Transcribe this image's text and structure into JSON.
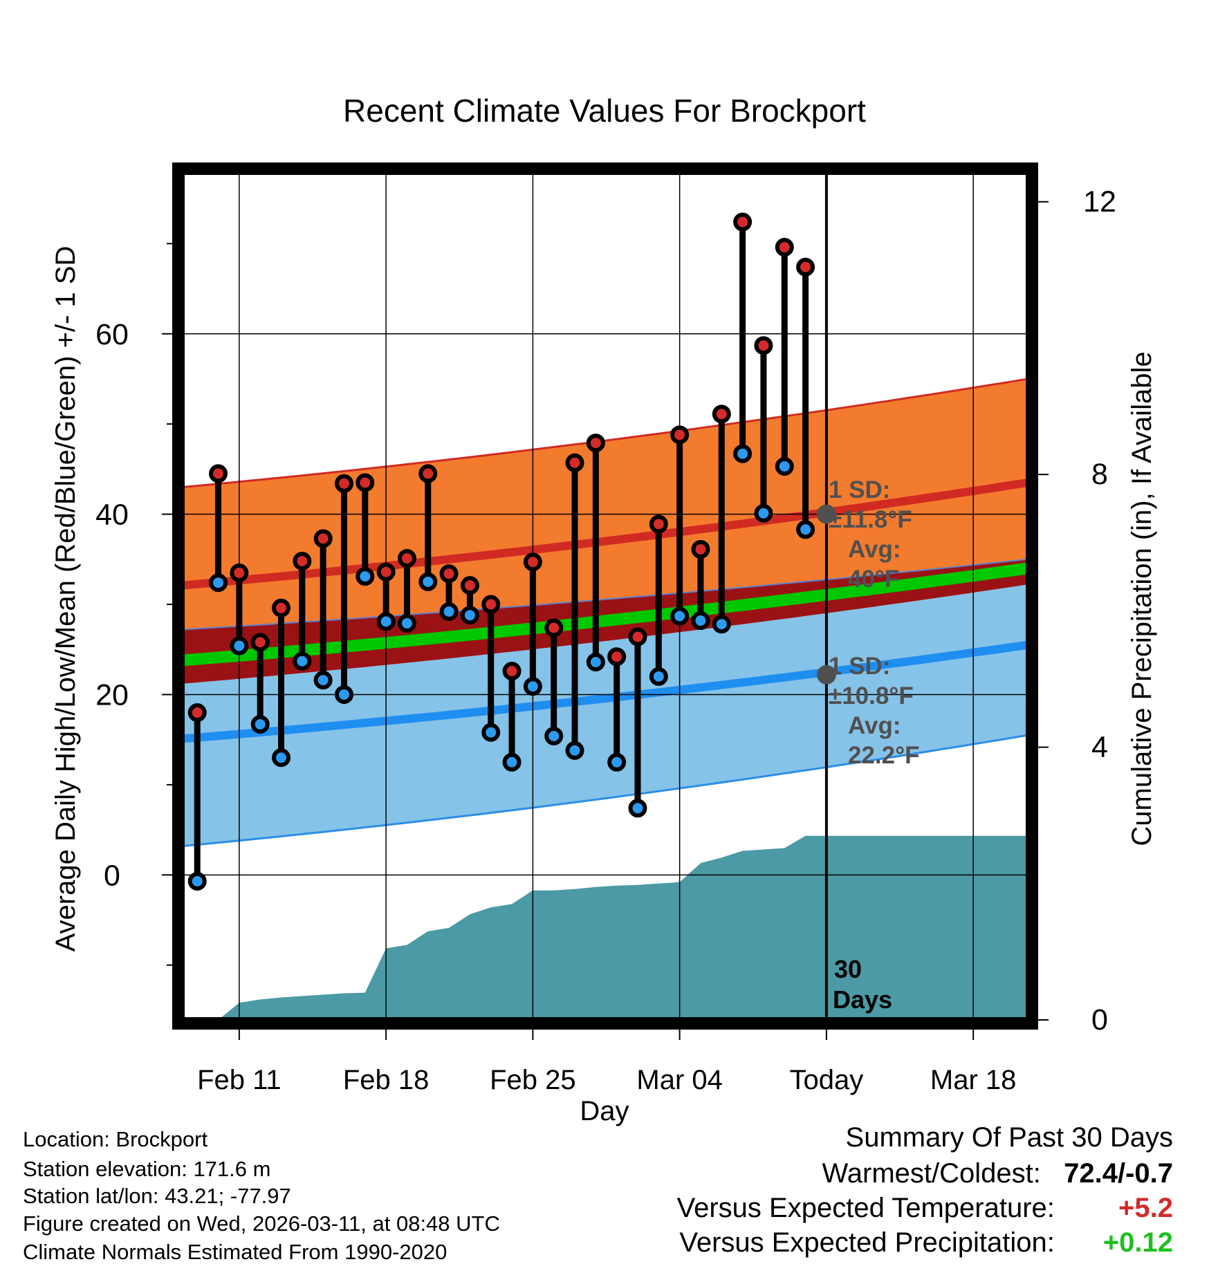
{
  "chart_data": {
    "type": "range_dot_chart",
    "title": "Recent Climate Values For Brockport",
    "xlabel": "Day",
    "ylabel_left": "Average Daily High/Low/Mean (Red/Blue/Green) +/- 1 SD",
    "ylabel_right": "Cumulative Precipitation (in), If Available",
    "y_left_range": [
      -16,
      78
    ],
    "y_left_ticks": [
      0,
      20,
      40,
      60
    ],
    "y_right_ticks": [
      0,
      4,
      8,
      12
    ],
    "x_ticks": [
      {
        "day": 0,
        "label": "Feb 11"
      },
      {
        "day": 7,
        "label": "Feb 18"
      },
      {
        "day": 14,
        "label": "Feb 25"
      },
      {
        "day": 21,
        "label": "Mar 04"
      },
      {
        "day": 28,
        "label": "Today"
      },
      {
        "day": 35,
        "label": "Mar 18"
      }
    ],
    "x_range": [
      -2.7,
      37.6
    ],
    "today_day": 28,
    "days": [
      -2,
      -1,
      0,
      1,
      2,
      3,
      4,
      5,
      6,
      7,
      8,
      9,
      10,
      11,
      12,
      13,
      14,
      15,
      16,
      17,
      18,
      19,
      20,
      21,
      22,
      23,
      24,
      25,
      26,
      27
    ],
    "high": [
      18,
      44.5,
      33.5,
      25.8,
      29.6,
      34.8,
      37.3,
      43.4,
      43.5,
      33.6,
      35.1,
      44.5,
      33.4,
      32.1,
      30,
      22.6,
      34.7,
      27.4,
      45.7,
      47.9,
      24.2,
      26.4,
      38.9,
      48.8,
      36.1,
      51.1,
      72.4,
      58.7,
      69.6,
      67.4
    ],
    "low": [
      -0.7,
      32.4,
      25.4,
      16.7,
      13,
      23.7,
      21.6,
      20,
      33.1,
      28.1,
      27.9,
      32.5,
      29.2,
      28.8,
      15.8,
      12.5,
      20.9,
      15.4,
      13.8,
      23.6,
      12.5,
      7.4,
      22,
      28.7,
      28.2,
      27.8,
      46.7,
      40.1,
      45.3,
      38.3
    ],
    "normal_high_mean": [
      32.1,
      43.5
    ],
    "normal_high_upper": [
      43,
      55
    ],
    "normal_high_lower": [
      27.2,
      35
    ],
    "normal_mean_line": [
      23.8,
      34
    ],
    "normal_low_mean": [
      15.1,
      25.5
    ],
    "normal_low_upper": [
      21.2,
      32.2
    ],
    "normal_low_lower": [
      3.2,
      15.5
    ],
    "precip_cumulative": [
      [
        -2.7,
        0
      ],
      [
        -1,
        0
      ],
      [
        0,
        0.25
      ],
      [
        1,
        0.3
      ],
      [
        2,
        0.33
      ],
      [
        3,
        0.35
      ],
      [
        4,
        0.37
      ],
      [
        5,
        0.39
      ],
      [
        6,
        0.4
      ],
      [
        7,
        1.05
      ],
      [
        8,
        1.1
      ],
      [
        9,
        1.3
      ],
      [
        10,
        1.35
      ],
      [
        11,
        1.55
      ],
      [
        12,
        1.65
      ],
      [
        13,
        1.7
      ],
      [
        14,
        1.9
      ],
      [
        15,
        1.9
      ],
      [
        16,
        1.92
      ],
      [
        17,
        1.95
      ],
      [
        18,
        1.97
      ],
      [
        19,
        1.98
      ],
      [
        20,
        2
      ],
      [
        21,
        2.02
      ],
      [
        22,
        2.3
      ],
      [
        23,
        2.38
      ],
      [
        24,
        2.48
      ],
      [
        25,
        2.5
      ],
      [
        26,
        2.52
      ],
      [
        27,
        2.7
      ],
      [
        37.6,
        2.7
      ]
    ],
    "high_sd_label": [
      "1 SD:",
      "±11.8°F",
      "Avg:",
      "40°F"
    ],
    "low_sd_label": [
      "1 SD:",
      "±10.8°F",
      "Avg:",
      "22.2°F"
    ],
    "high_avg_today": 40,
    "low_avg_today": 22.2,
    "days_label": [
      "30",
      "Days"
    ],
    "colors": {
      "high_band": "#f37b2e",
      "high_band_edge": "#d12a22",
      "high_mean": "#d12a22",
      "low_band": "#86c3e8",
      "low_band_edge": "#2b8ee8",
      "low_mean": "#1e8ef0",
      "mean_band": "#9a1214",
      "mean_line": "#00c800",
      "precip": "#4b9aa5",
      "high_dot": "#d42a2a",
      "low_dot": "#2b9af0",
      "avg_dot": "#505050"
    }
  },
  "info": {
    "location": "Location: Brockport",
    "elevation": "Station elevation: 171.6 m",
    "latlon": "Station lat/lon: 43.21; -77.97",
    "created": "Figure created on Wed, 2026-03-11, at 08:48 UTC",
    "normals": "Climate Normals Estimated From 1990-2020"
  },
  "summary": {
    "title": "Summary Of Past 30 Days",
    "warm_cold_label": "Warmest/Coldest:",
    "warm_cold_value": "72.4/-0.7",
    "temp_label": "Versus Expected Temperature:",
    "temp_value": "+5.2",
    "temp_color": "#d42a2a",
    "precip_label": "Versus Expected Precipitation:",
    "precip_value": "+0.12",
    "precip_color": "#1dc01d"
  }
}
